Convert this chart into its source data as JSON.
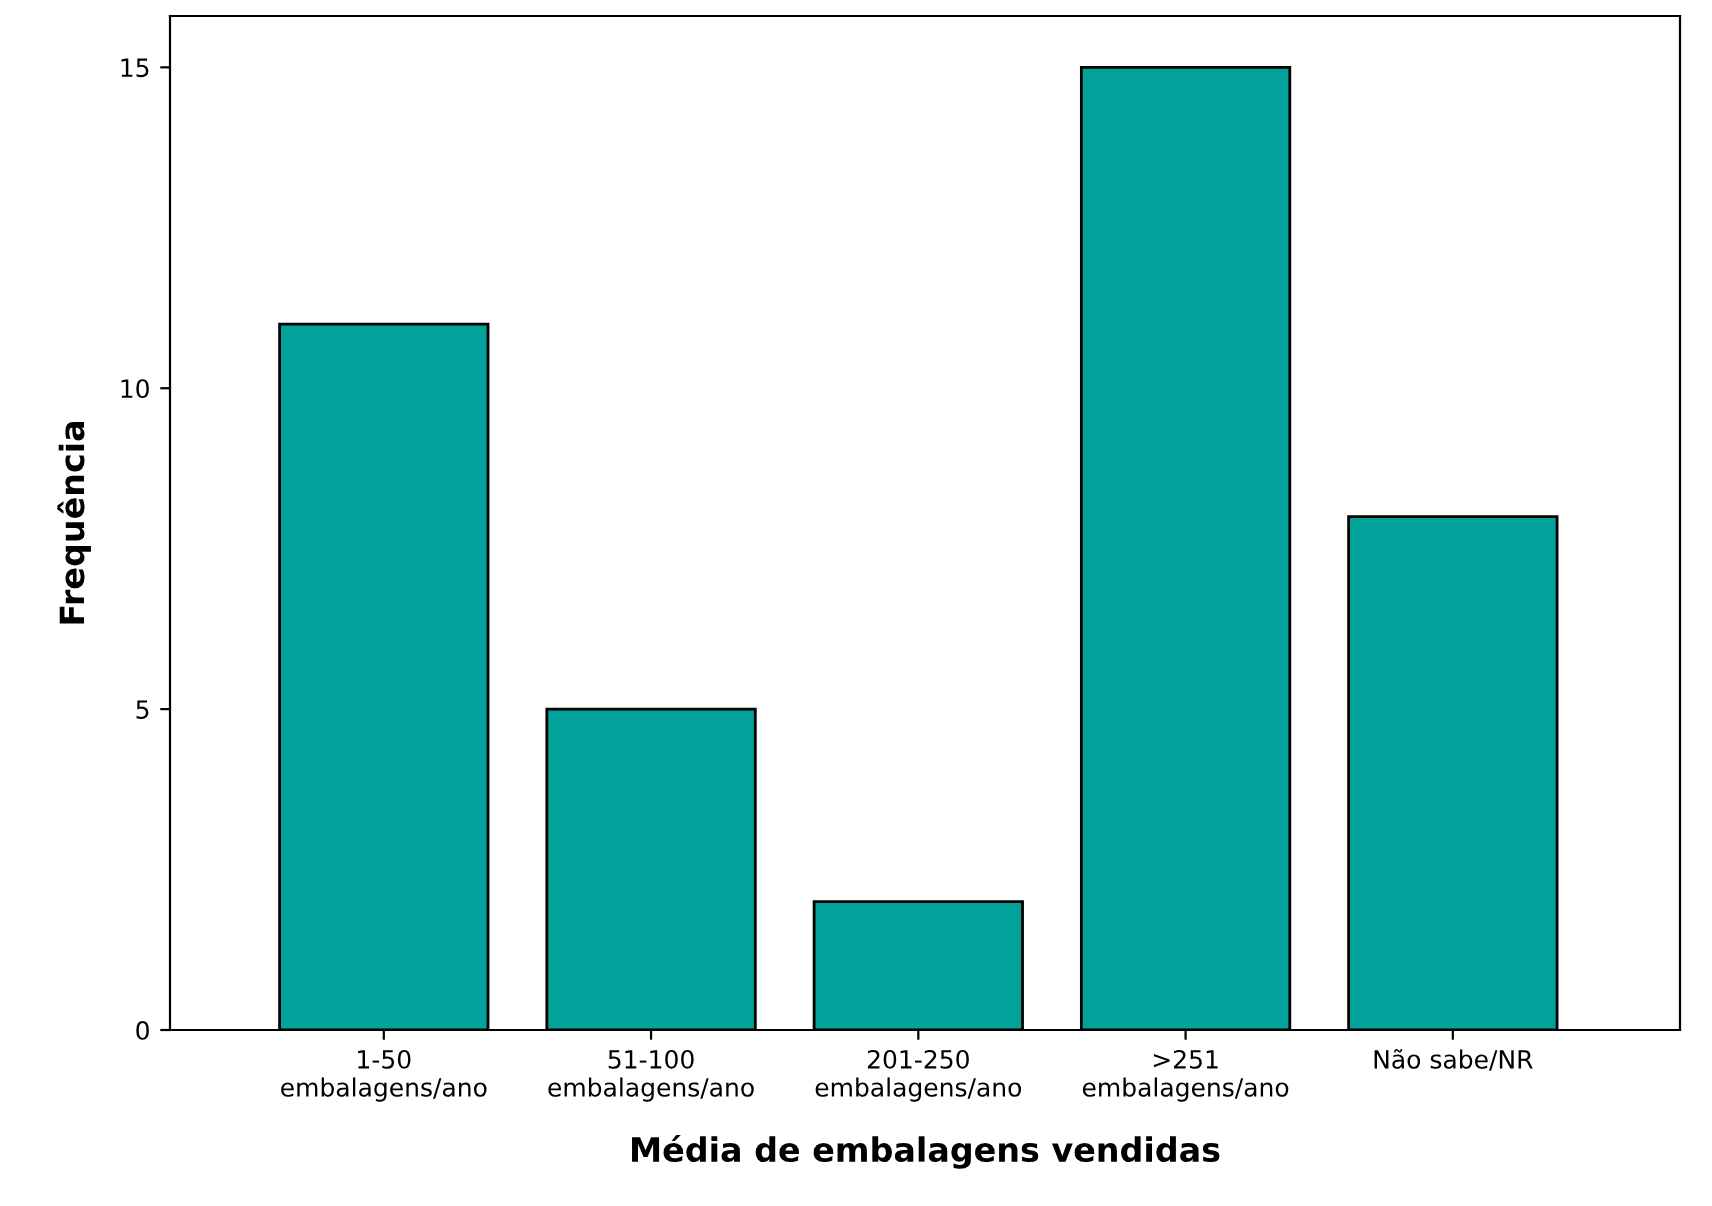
{
  "chart_data": {
    "type": "bar",
    "xlabel": "Média de embalagens vendidas",
    "ylabel": "Frequência",
    "categories": [
      "1-50\nembalagens/ano",
      "51-100\nembalagens/ano",
      "201-250\nembalagens/ano",
      ">251\nembalagens/ano",
      "Não sabe/NR"
    ],
    "values": [
      11,
      5,
      2,
      15,
      8
    ],
    "color": "#00a29a",
    "ylim": [
      0,
      15.8
    ],
    "yticks": [
      0,
      5,
      10,
      15
    ],
    "grid": false
  }
}
